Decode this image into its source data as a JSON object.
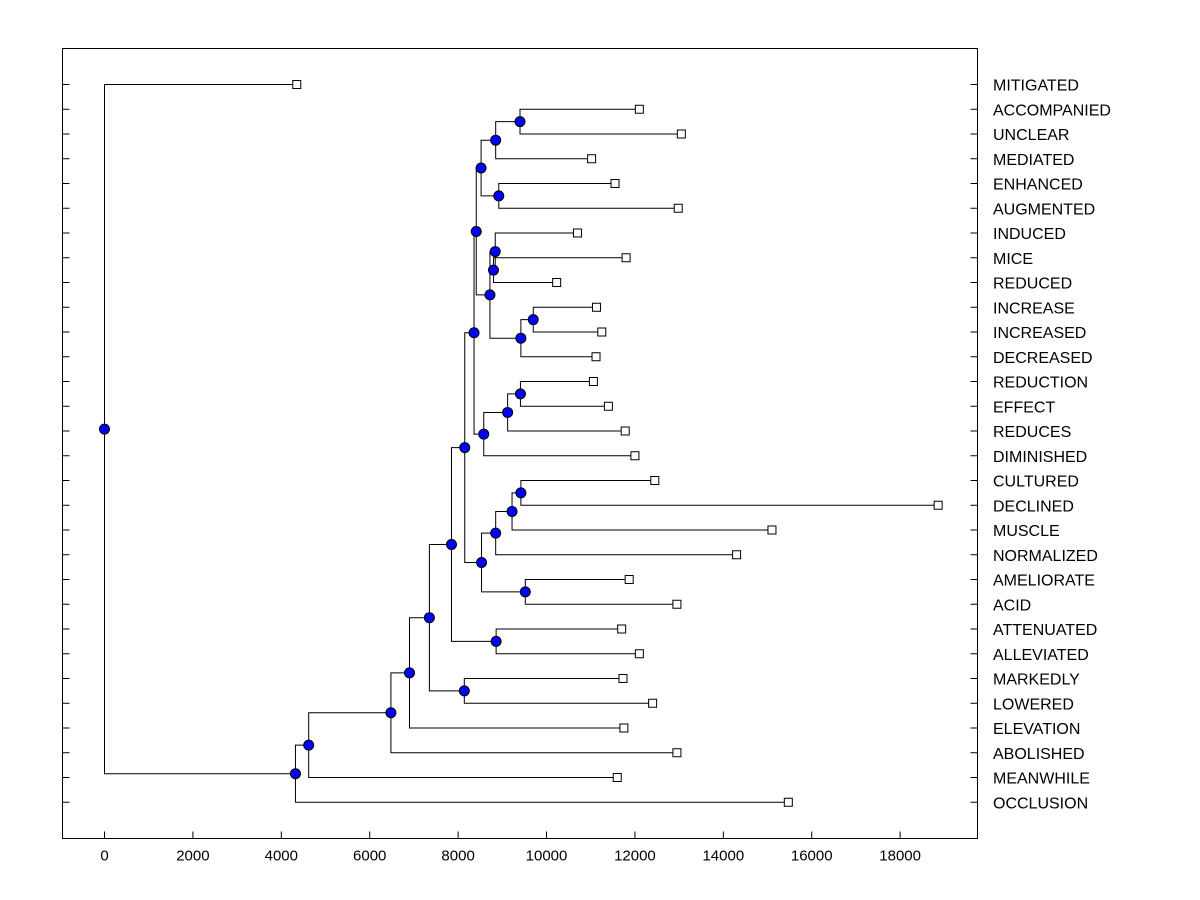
{
  "chart_data": {
    "type": "dendrogram",
    "title": "",
    "xlabel": "",
    "ylabel": "",
    "xlim": [
      -950,
      19750
    ],
    "x_ticks": [
      0,
      2000,
      4000,
      6000,
      8000,
      10000,
      12000,
      14000,
      16000,
      18000
    ],
    "node_color": "#0000ff",
    "leaf_color": "#ffffff",
    "leaves": [
      {
        "label": "MITIGATED",
        "x": 4350
      },
      {
        "label": "ACCOMPANIED",
        "x": 12100
      },
      {
        "label": "UNCLEAR",
        "x": 13050
      },
      {
        "label": "MEDIATED",
        "x": 11020
      },
      {
        "label": "ENHANCED",
        "x": 11550
      },
      {
        "label": "AUGMENTED",
        "x": 12980
      },
      {
        "label": "INDUCED",
        "x": 10700
      },
      {
        "label": "MICE",
        "x": 11800
      },
      {
        "label": "REDUCED",
        "x": 10230
      },
      {
        "label": "INCREASE",
        "x": 11130
      },
      {
        "label": "INCREASED",
        "x": 11250
      },
      {
        "label": "DECREASED",
        "x": 11120
      },
      {
        "label": "REDUCTION",
        "x": 11060
      },
      {
        "label": "EFFECT",
        "x": 11400
      },
      {
        "label": "REDUCES",
        "x": 11780
      },
      {
        "label": "DIMINISHED",
        "x": 12000
      },
      {
        "label": "CULTURED",
        "x": 12450
      },
      {
        "label": "DECLINED",
        "x": 18860
      },
      {
        "label": "MUSCLE",
        "x": 15100
      },
      {
        "label": "NORMALIZED",
        "x": 14300
      },
      {
        "label": "AMELIORATE",
        "x": 11870
      },
      {
        "label": "ACID",
        "x": 12950
      },
      {
        "label": "ATTENUATED",
        "x": 11700
      },
      {
        "label": "ALLEVIATED",
        "x": 12100
      },
      {
        "label": "MARKEDLY",
        "x": 11730
      },
      {
        "label": "LOWERED",
        "x": 12400
      },
      {
        "label": "ELEVATION",
        "x": 11750
      },
      {
        "label": "ABOLISHED",
        "x": 12950
      },
      {
        "label": "MEANWHILE",
        "x": 11600
      },
      {
        "label": "OCCLUSION",
        "x": 15470
      }
    ],
    "merges": [
      {
        "x": 9400,
        "children": [
          "L1",
          "L2"
        ]
      },
      {
        "x": 8850,
        "children": [
          "M0",
          "L3"
        ]
      },
      {
        "x": 8920,
        "children": [
          "L4",
          "L5"
        ]
      },
      {
        "x": 8520,
        "children": [
          "M1",
          "M2"
        ]
      },
      {
        "x": 8800,
        "children": [
          "L7",
          "L8"
        ]
      },
      {
        "x": 8840,
        "children": [
          "L6",
          "M4"
        ]
      },
      {
        "x": 9700,
        "children": [
          "L9",
          "L10"
        ]
      },
      {
        "x": 9420,
        "children": [
          "M6",
          "L11"
        ]
      },
      {
        "x": 8720,
        "children": [
          "M5",
          "M7"
        ]
      },
      {
        "x": 8410,
        "children": [
          "M3",
          "M8"
        ]
      },
      {
        "x": 9410,
        "children": [
          "L12",
          "L13"
        ]
      },
      {
        "x": 9120,
        "children": [
          "M10",
          "L14"
        ]
      },
      {
        "x": 8580,
        "children": [
          "M11",
          "L15"
        ]
      },
      {
        "x": 8360,
        "children": [
          "M9",
          "M12"
        ]
      },
      {
        "x": 9420,
        "children": [
          "L16",
          "L17"
        ]
      },
      {
        "x": 9220,
        "children": [
          "M14",
          "L18"
        ]
      },
      {
        "x": 8850,
        "children": [
          "M15",
          "L19"
        ]
      },
      {
        "x": 9520,
        "children": [
          "L20",
          "L21"
        ]
      },
      {
        "x": 8530,
        "children": [
          "M16",
          "M17"
        ]
      },
      {
        "x": 8150,
        "children": [
          "M13",
          "M18"
        ]
      },
      {
        "x": 8860,
        "children": [
          "L22",
          "L23"
        ]
      },
      {
        "x": 7850,
        "children": [
          "M19",
          "M20"
        ]
      },
      {
        "x": 8140,
        "children": [
          "L24",
          "L25"
        ]
      },
      {
        "x": 7350,
        "children": [
          "M21",
          "M22"
        ]
      },
      {
        "x": 6900,
        "children": [
          "M23",
          "L26"
        ]
      },
      {
        "x": 6480,
        "children": [
          "M24",
          "L27"
        ]
      },
      {
        "x": 4620,
        "children": [
          "M25",
          "L28"
        ]
      },
      {
        "x": 4320,
        "children": [
          "M26",
          "L29"
        ]
      },
      {
        "x": 0,
        "children": [
          "L0",
          "M27"
        ]
      }
    ]
  }
}
